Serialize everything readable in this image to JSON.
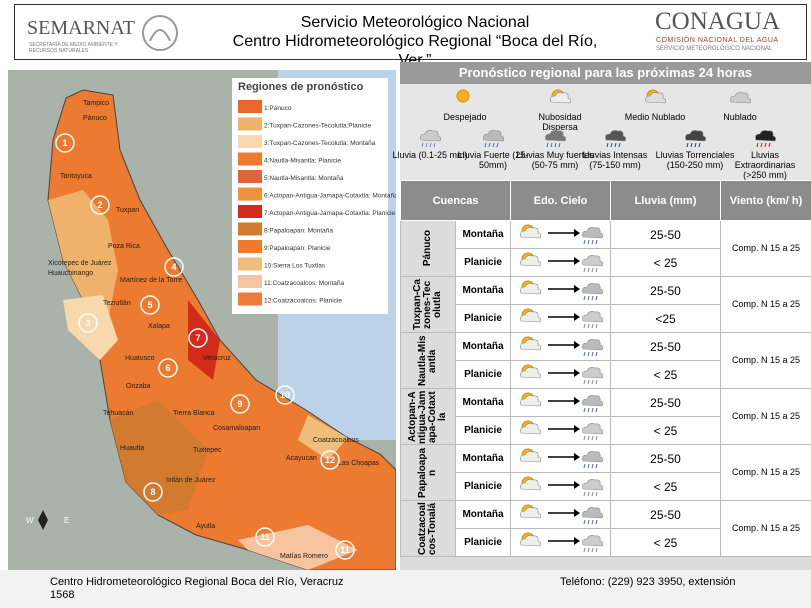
{
  "header": {
    "semarnat": "SEMARNAT",
    "semarnat_sub": "SECRETARÍA DE MEDIO AMBIENTE Y RECURSOS NATURALES",
    "title_1": "Servicio Meteorológico Nacional",
    "title_2": "Centro Hidrometeorológico Regional “Boca del Río, Ver.”",
    "conagua": "CONAGUA",
    "conagua_sub_1": "COMISIÓN NACIONAL DEL AGUA",
    "conagua_sub_2": "SERVICIO METEOROLÓGICO NACIONAL"
  },
  "map": {
    "legend_title": "Regiones de pronóstico",
    "regions": [
      {
        "label": "1:Pánuco",
        "color": "#e8672a"
      },
      {
        "label": "2:Tuxpan-Cazones-Tecolutla:Planicie",
        "color": "#f0b26a"
      },
      {
        "label": "3:Tuxpan-Cazones-Tecolutla: Montaña",
        "color": "#f7d9ad"
      },
      {
        "label": "4:Nautla-Misantla: Planicie",
        "color": "#ec7a30"
      },
      {
        "label": "5:Nautla-Misantla: Montaña",
        "color": "#e0663a"
      },
      {
        "label": "6:Actopan-Antigua-Jamapa-Cotaxtla: Montaña",
        "color": "#f0923c"
      },
      {
        "label": "7:Actopan-Antigua-Jamapa-Cotaxtla: Planicie",
        "color": "#d42a1c"
      },
      {
        "label": "8:Papaloapan: Montaña",
        "color": "#d27a30"
      },
      {
        "label": "9:Papaloapan: Planicie",
        "color": "#f07a28"
      },
      {
        "label": "10:Sierra Los Tuxtlas",
        "color": "#eebf7c"
      },
      {
        "label": "11:Coatzacoalcos: Montaña",
        "color": "#f7c4a0"
      },
      {
        "label": "12:Coatzacoalcos: Planicie",
        "color": "#ef7a3a"
      }
    ],
    "markers": [
      "1",
      "2",
      "3",
      "4",
      "5",
      "6",
      "7",
      "8",
      "9",
      "10",
      "11",
      "12",
      "11"
    ],
    "places": [
      "Pánuco",
      "Tampico",
      "Tantoyuca",
      "Tuxpan",
      "Poza Rica",
      "Xicotepec de Juárez",
      "Huauchinango",
      "Martínez de la Torre",
      "Teziutlán",
      "Xalapa",
      "Huatusco",
      "Veracruz",
      "Orizaba",
      "Tehuacán",
      "Tierra Blanca",
      "Cosamaloapan",
      "Huautla",
      "Tuxtepec",
      "Ixtlán de Juárez",
      "Ayutla",
      "Acayucan",
      "Coatzacoalcos",
      "Las Choapas",
      "Matías Romero"
    ],
    "compass": [
      "W",
      "E"
    ]
  },
  "panel": {
    "title": "Pronóstico regional para las próximas 24 horas",
    "sky_legend": [
      "Despejado",
      "Nubosidad Dispersa",
      "Medio Nublado",
      "Nublado",
      "Lluvia (0.1-25 mm)",
      "Lluvia Fuerte (25-50mm)",
      "Lluvias Muy fuertes (50-75 mm)",
      "Lluvias Intensas (75-150 mm)",
      "Lluvias Torrenciales (150-250 mm)",
      "Lluvias Extraordinarias (>250 mm)"
    ],
    "table": {
      "headers": [
        "Cuencas",
        "Edo. Cielo",
        "Lluvia (mm)",
        "Viento (km/ h)"
      ],
      "rows": [
        {
          "basin": "Pánuco",
          "wind": "Comp. N 15 a 25",
          "zones": [
            {
              "zone": "Montaña",
              "rain": "25-50"
            },
            {
              "zone": "Planicie",
              "rain": "< 25"
            }
          ]
        },
        {
          "basin": "Tuxpan-Cazones-Tecolutla",
          "wind": "Comp. N 15 a 25",
          "zones": [
            {
              "zone": "Montaña",
              "rain": "25-50"
            },
            {
              "zone": "Planicie",
              "rain": "<25"
            }
          ]
        },
        {
          "basin": "Nautla-Misantla",
          "wind": "Comp. N 15 a 25",
          "zones": [
            {
              "zone": "Montaña",
              "rain": "25-50"
            },
            {
              "zone": "Planicie",
              "rain": "< 25"
            }
          ]
        },
        {
          "basin": "Actopan-Antigua-Jamapa-Cotaxtla",
          "wind": "Comp. N 15 a 25",
          "zones": [
            {
              "zone": "Montaña",
              "rain": "25-50"
            },
            {
              "zone": "Planicie",
              "rain": "< 25"
            }
          ]
        },
        {
          "basin": "Papaloapan",
          "wind": "Comp. N 15 a 25",
          "zones": [
            {
              "zone": "Montaña",
              "rain": "25-50"
            },
            {
              "zone": "Planicie",
              "rain": "< 25"
            }
          ]
        },
        {
          "basin": "Coatzacoalcos-Tonalá",
          "wind": "Comp. N 15 a 25",
          "zones": [
            {
              "zone": "Montaña",
              "rain": "25-50"
            },
            {
              "zone": "Planicie",
              "rain": "< 25"
            }
          ]
        }
      ]
    }
  },
  "footer": {
    "address": "Centro Hidrometeorológico Regional Boca del Río, Veracruz 1568",
    "phone": "Teléfono: (229) 923 3950, extensión"
  }
}
